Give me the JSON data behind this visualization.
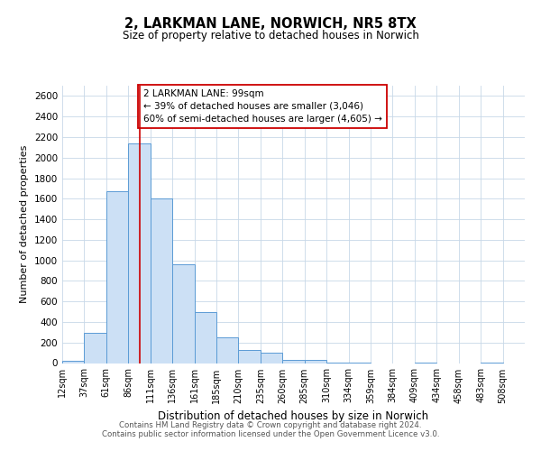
{
  "title": "2, LARKMAN LANE, NORWICH, NR5 8TX",
  "subtitle": "Size of property relative to detached houses in Norwich",
  "xlabel": "Distribution of detached houses by size in Norwich",
  "ylabel": "Number of detached properties",
  "bar_color": "#cce0f5",
  "bar_edge_color": "#5b9bd5",
  "background_color": "#ffffff",
  "grid_color": "#c8d8e8",
  "bin_labels": [
    "12sqm",
    "37sqm",
    "61sqm",
    "86sqm",
    "111sqm",
    "136sqm",
    "161sqm",
    "185sqm",
    "210sqm",
    "235sqm",
    "260sqm",
    "285sqm",
    "310sqm",
    "334sqm",
    "359sqm",
    "384sqm",
    "409sqm",
    "434sqm",
    "458sqm",
    "483sqm",
    "508sqm"
  ],
  "bar_heights": [
    20,
    295,
    1670,
    2140,
    1600,
    960,
    500,
    250,
    125,
    100,
    30,
    30,
    5,
    5,
    0,
    0,
    5,
    0,
    0,
    5,
    0
  ],
  "ylim": [
    0,
    2700
  ],
  "yticks": [
    0,
    200,
    400,
    600,
    800,
    1000,
    1200,
    1400,
    1600,
    1800,
    2000,
    2200,
    2400,
    2600
  ],
  "property_line_x": 4,
  "property_line_color": "#cc0000",
  "annotation_text": "2 LARKMAN LANE: 99sqm\n← 39% of detached houses are smaller (3,046)\n60% of semi-detached houses are larger (4,605) →",
  "annotation_box_color": "#ffffff",
  "annotation_box_edge_color": "#cc0000",
  "footer_line1": "Contains HM Land Registry data © Crown copyright and database right 2024.",
  "footer_line2": "Contains public sector information licensed under the Open Government Licence v3.0.",
  "n_bins": 21
}
